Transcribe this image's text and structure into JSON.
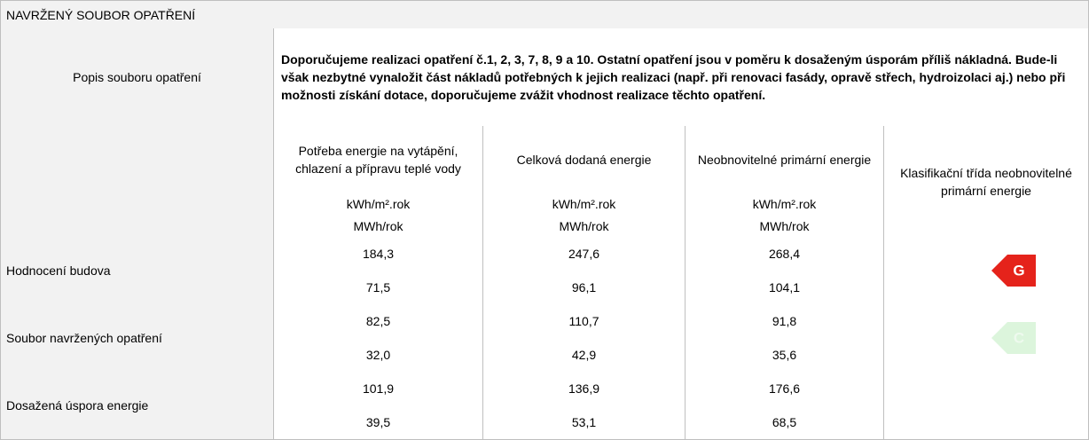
{
  "title": "NAVRŽENÝ SOUBOR OPATŘENÍ",
  "description": {
    "label": "Popis souboru opatření",
    "text": "Doporučujeme realizaci opatření č.1, 2, 3, 7, 8, 9 a 10. Ostatní opatření jsou v poměru k dosaženým úsporám příliš nákladná. Bude-li však nezbytné vynaložit část nákladů potřebných k jejich realizaci  (např. při renovaci fasády, opravě střech, hydroizolaci aj.) nebo při možnosti získání dotace, doporučujeme zvážit vhodnost realizace těchto opatření."
  },
  "table": {
    "columns": [
      "Potřeba energie na vytápění, chlazení a přípravu teplé vody",
      "Celková dodaná energie",
      "Neobnovitelné primární energie",
      "Klasifikační třída neobnovitelné primární energie"
    ],
    "units": [
      [
        "kWh/m².rok",
        "kWh/m².rok",
        "kWh/m².rok"
      ],
      [
        "MWh/rok",
        "MWh/rok",
        "MWh/rok"
      ]
    ],
    "rows": [
      {
        "label": "Hodnocení budova",
        "values": [
          [
            "184,3",
            "247,6",
            "268,4"
          ],
          [
            "71,5",
            "96,1",
            "104,1"
          ]
        ],
        "class": "G",
        "class_color": "#e5231b"
      },
      {
        "label": "Soubor navržených opatření",
        "values": [
          [
            "82,5",
            "110,7",
            "91,8"
          ],
          [
            "32,0",
            "42,9",
            "35,6"
          ]
        ],
        "class": "C",
        "class_color": "#dcf5dc"
      },
      {
        "label": "Dosažená úspora energie",
        "values": [
          [
            "101,9",
            "136,9",
            "176,6"
          ],
          [
            "39,5",
            "53,1",
            "68,5"
          ]
        ]
      }
    ]
  }
}
